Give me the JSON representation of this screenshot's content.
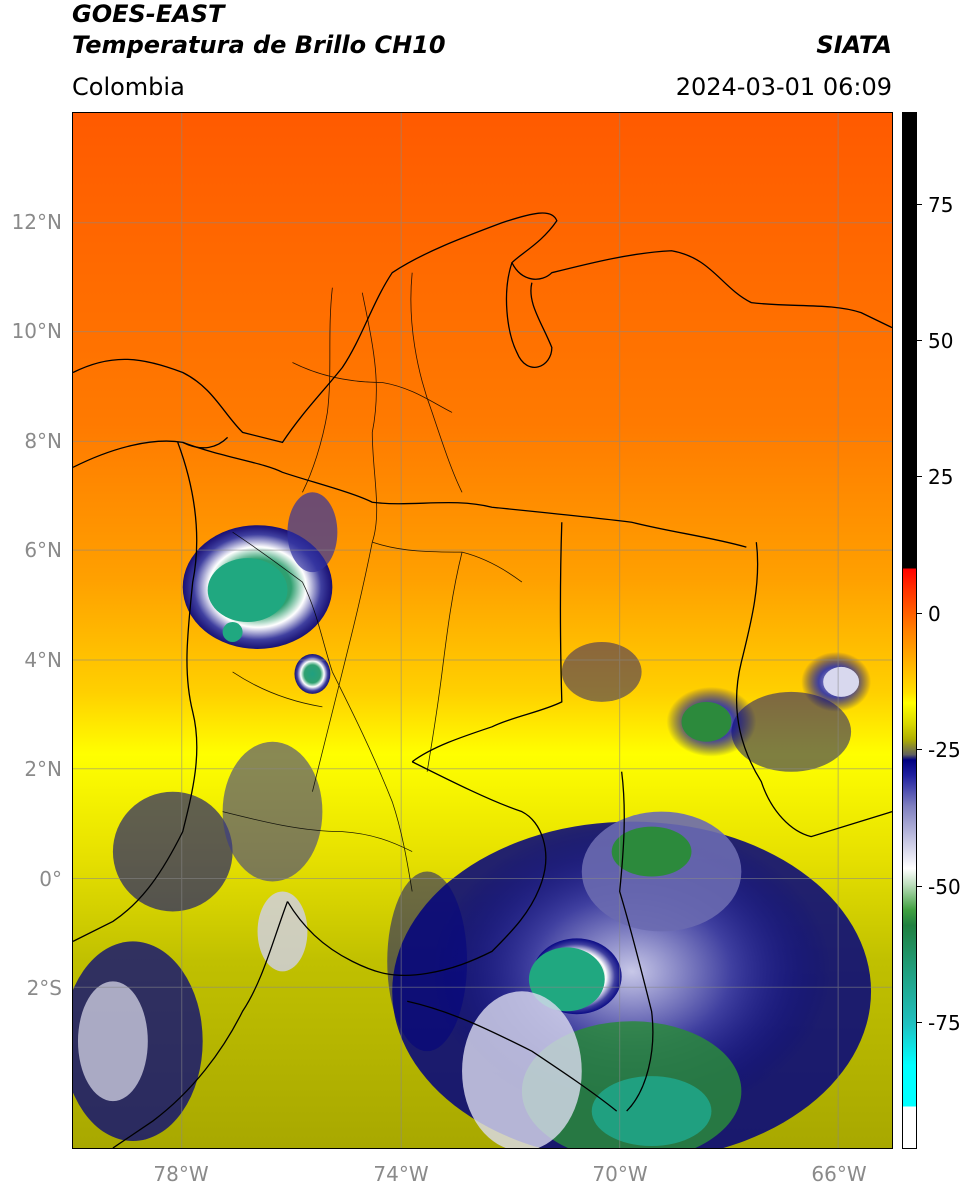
{
  "header": {
    "satellite": "GOES-EAST",
    "product": "Temperatura de Brillo CH10",
    "region": "Colombia",
    "agency": "SIATA",
    "datetime": "2024-03-01 06:09"
  },
  "map": {
    "lat_labels": [
      "12°N",
      "10°N",
      "8°N",
      "6°N",
      "4°N",
      "2°N",
      "0°",
      "2°S"
    ],
    "lat_values": [
      12,
      10,
      8,
      6,
      4,
      2,
      0,
      -2
    ],
    "lon_labels": [
      "78°W",
      "74°W",
      "70°W",
      "66°W"
    ],
    "lon_values": [
      -78,
      -74,
      -70,
      -66
    ],
    "extent": {
      "lon_min": -80,
      "lon_max": -65,
      "lat_min": -4.9,
      "lat_max": 14
    },
    "colors": {
      "warm": "#ff6a00",
      "mid": "#ffff00",
      "olive": "#b4b400",
      "cold": "#000080",
      "very_cold": "#20a080"
    }
  },
  "colorbar": {
    "ticks": [
      "75",
      "50",
      "25",
      "0",
      "-25",
      "-50",
      "-75"
    ],
    "tick_values": [
      75,
      50,
      25,
      0,
      -25,
      -50,
      -75
    ],
    "range": [
      -100,
      90
    ]
  }
}
